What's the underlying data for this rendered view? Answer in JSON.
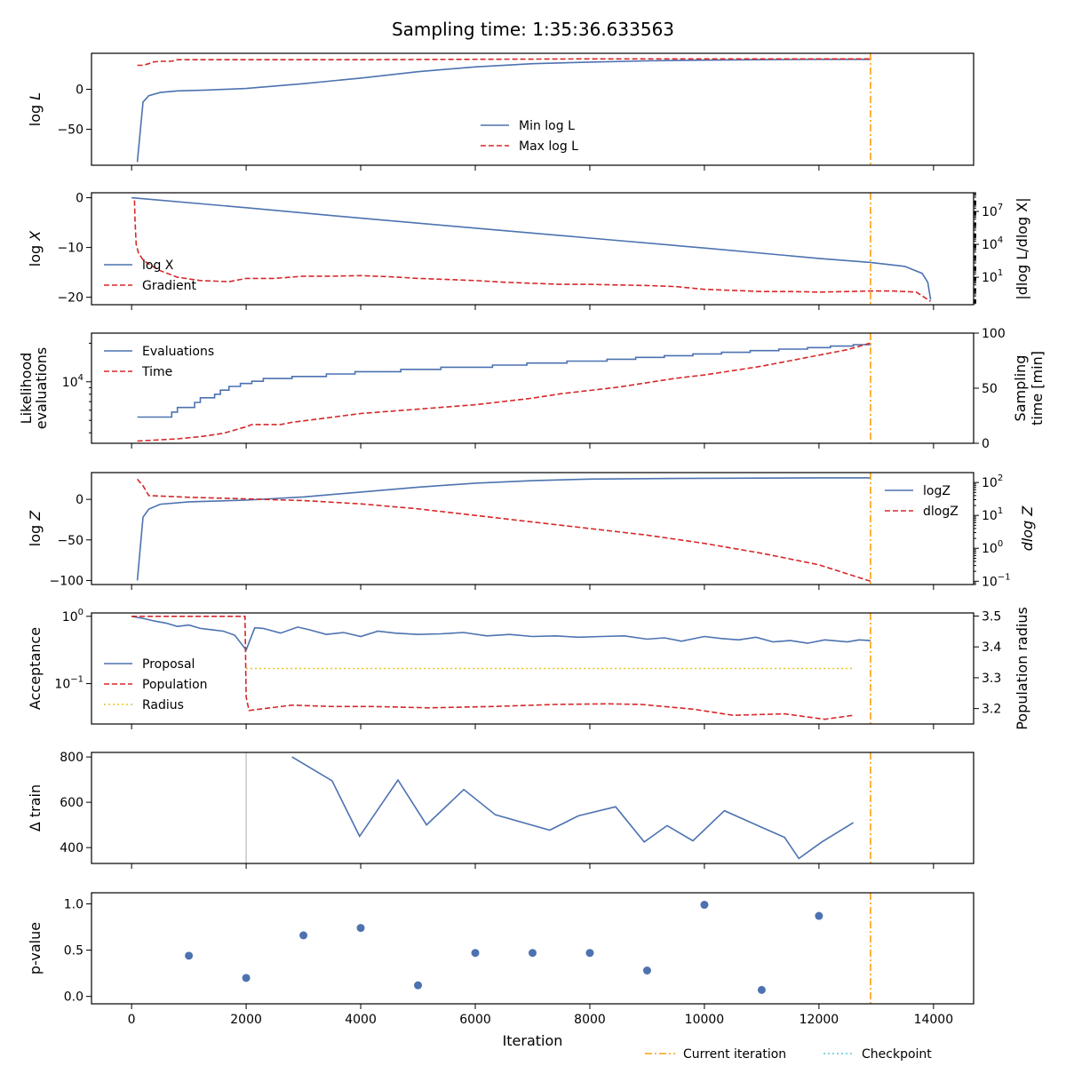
{
  "title": "Sampling time: 1:35:36.633563",
  "colors": {
    "blue": "#4c72b0",
    "red": "#d62728",
    "orange": "#ff9f0e",
    "gold": "#e8c51b",
    "teal": "#5fc9d6",
    "gray": "#c8c8c8"
  },
  "chart_data": [
    {
      "type": "line",
      "id": "logL",
      "ylabel_main": "log ",
      "ylabel_sub": "L",
      "xlim": [
        -700,
        14700
      ],
      "ylim": [
        -95,
        45
      ],
      "yticks": [
        {
          "v": 0,
          "label": "0"
        },
        {
          "v": -50,
          "label": "−50"
        }
      ],
      "legend": "lower-center",
      "series": [
        {
          "name": "Min log L",
          "style": "solid",
          "color": "blue",
          "x": [
            100,
            200,
            300,
            500,
            800,
            1300,
            2000,
            3000,
            4000,
            5000,
            6000,
            7000,
            8000,
            9000,
            10000,
            11000,
            12000,
            12900
          ],
          "y": [
            -91,
            -16,
            -8,
            -4,
            -2,
            -1,
            1,
            7,
            14,
            22,
            28,
            32,
            34,
            35.5,
            36.5,
            37,
            37.5,
            37.5
          ]
        },
        {
          "name": "Max log L",
          "style": "dashed",
          "color": "red",
          "x": [
            100,
            200,
            300,
            350,
            500,
            700,
            800,
            2000,
            4000,
            8000,
            12900
          ],
          "y": [
            30,
            30,
            32,
            34,
            35,
            35,
            37,
            37,
            37,
            38,
            38
          ]
        }
      ],
      "legend_labels": [
        "Min log L",
        "Max log L"
      ]
    },
    {
      "type": "line",
      "id": "logX",
      "ylabel_main": "log ",
      "ylabel_sub": "X",
      "ylabel_right": "|dlog L/dlog X|",
      "xlim": [
        -700,
        14700
      ],
      "ylim": [
        -21.5,
        1.0
      ],
      "yticks": [
        {
          "v": 0,
          "label": "0"
        },
        {
          "v": -10,
          "label": "−10"
        },
        {
          "v": -20,
          "label": "−20"
        }
      ],
      "yright_log_lim": [
        -1.5,
        8.7
      ],
      "yright_ticks": [
        {
          "exp": 7,
          "label": "10",
          "sup": "7"
        },
        {
          "exp": 4,
          "label": "10",
          "sup": "4"
        },
        {
          "exp": 1,
          "label": "10",
          "sup": "1"
        }
      ],
      "legend": "center-left",
      "series": [
        {
          "name": "log X",
          "style": "solid",
          "color": "blue",
          "x": [
            0,
            2000,
            4000,
            6000,
            8000,
            10000,
            12000,
            12900,
            13500,
            13800,
            13900,
            13950
          ],
          "y": [
            0,
            -2.0,
            -4.1,
            -6.1,
            -8.1,
            -10.1,
            -12.2,
            -13.0,
            -13.8,
            -15.2,
            -17.0,
            -20.5
          ]
        },
        {
          "name": "Gradient",
          "style": "dashed",
          "color": "red",
          "axis": "log-right",
          "x": [
            50,
            60,
            80,
            120,
            200,
            300,
            500,
            800,
            1200,
            1700,
            2000,
            2500,
            3000,
            3500,
            4000,
            4500,
            5000,
            5500,
            6000,
            6500,
            7000,
            7500,
            8000,
            8500,
            9000,
            9500,
            10000,
            10500,
            11000,
            11500,
            12000,
            12500,
            12900,
            13300,
            13700,
            13950
          ],
          "y": [
            8.0,
            6.2,
            4.0,
            3.2,
            2.6,
            2.2,
            1.6,
            1.0,
            0.7,
            0.6,
            0.9,
            0.9,
            1.1,
            1.1,
            1.15,
            1.05,
            0.9,
            0.8,
            0.7,
            0.55,
            0.45,
            0.35,
            0.35,
            0.3,
            0.25,
            0.15,
            -0.1,
            -0.2,
            -0.3,
            -0.3,
            -0.35,
            -0.3,
            -0.25,
            -0.25,
            -0.35,
            -1.2
          ]
        }
      ],
      "legend_labels": [
        "log X",
        "Gradient"
      ]
    },
    {
      "type": "line",
      "id": "evals",
      "ylabel_lines": [
        "Likelihood",
        "evaluations"
      ],
      "ylabel_right_lines": [
        "Sampling",
        "time [min]"
      ],
      "xlim": [
        -700,
        14700
      ],
      "ylim_log10": [
        3.52,
        4.38
      ],
      "yticks": [
        {
          "exp": 4,
          "label": "10",
          "sup": "4"
        }
      ],
      "yright_lim": [
        0,
        100
      ],
      "yright_ticks": [
        {
          "v": 100,
          "label": "100"
        },
        {
          "v": 50,
          "label": "50"
        },
        {
          "v": 0,
          "label": "0"
        }
      ],
      "legend": "upper-left",
      "series": [
        {
          "name": "Evaluations",
          "style": "steps",
          "color": "blue",
          "x": [
            100,
            700,
            800,
            1100,
            1200,
            1450,
            1550,
            1700,
            1900,
            2100,
            2300,
            2800,
            3400,
            3900,
            4700,
            5400,
            6300,
            6900,
            7600,
            8300,
            8800,
            9300,
            9800,
            10300,
            10800,
            11300,
            11800,
            12200,
            12600,
            12900
          ],
          "y": [
            5300,
            5800,
            6300,
            6900,
            7500,
            8000,
            8600,
            9200,
            9700,
            10100,
            10600,
            11000,
            11500,
            12000,
            12500,
            13000,
            13500,
            14000,
            14500,
            15000,
            15500,
            16000,
            16500,
            17000,
            17500,
            18000,
            18500,
            19000,
            19500,
            19800
          ]
        },
        {
          "name": "Time",
          "style": "dashed",
          "color": "red",
          "axis": "linear-right",
          "x": [
            100,
            800,
            1200,
            1600,
            1800,
            2000,
            2100,
            2600,
            2800,
            3100,
            3400,
            3700,
            4000,
            4500,
            5000,
            5500,
            6000,
            6500,
            7000,
            7500,
            8000,
            8500,
            9000,
            9500,
            10000,
            10500,
            11000,
            11500,
            12000,
            12500,
            12900
          ],
          "y": [
            2,
            4,
            6,
            9,
            12,
            15,
            17,
            17,
            19,
            21,
            23,
            25,
            27,
            29,
            31,
            33,
            35,
            38,
            41,
            45,
            48,
            51,
            55,
            59,
            62,
            66,
            70,
            75,
            80,
            85,
            91
          ]
        }
      ],
      "legend_labels": [
        "Evaluations",
        "Time"
      ]
    },
    {
      "type": "line",
      "id": "logZ",
      "ylabel_main": "log ",
      "ylabel_sub": "Z",
      "ylabel_right_main": "d",
      "ylabel_right_sub": "log Z",
      "xlim": [
        -700,
        14700
      ],
      "ylim": [
        -105,
        33
      ],
      "yticks": [
        {
          "v": 0,
          "label": "0"
        },
        {
          "v": -50,
          "label": "−50"
        },
        {
          "v": -100,
          "label": "−100"
        }
      ],
      "yright_log_lim": [
        -1.1,
        2.3
      ],
      "yright_ticks": [
        {
          "exp": 2,
          "label": "10",
          "sup": "2"
        },
        {
          "exp": 1,
          "label": "10",
          "sup": "1"
        },
        {
          "exp": 0,
          "label": "10",
          "sup": "0"
        },
        {
          "exp": -1,
          "label": "10",
          "sup": "−1"
        }
      ],
      "legend": "upper-right",
      "series": [
        {
          "name": "logZ",
          "style": "solid",
          "color": "blue",
          "x": [
            100,
            200,
            300,
            500,
            1000,
            2000,
            3000,
            4000,
            5000,
            6000,
            7000,
            8000,
            9000,
            10000,
            11000,
            12000,
            12900
          ],
          "y": [
            -100,
            -22,
            -12,
            -6,
            -3,
            -1,
            3,
            9,
            15,
            20,
            23,
            25,
            25.5,
            26,
            26.2,
            26.5,
            26.5
          ]
        },
        {
          "name": "dlogZ",
          "style": "dashed",
          "color": "red",
          "axis": "log-right",
          "x": [
            100,
            200,
            300,
            1000,
            2000,
            3000,
            4000,
            5000,
            6000,
            7000,
            8000,
            9000,
            10000,
            11000,
            12000,
            12900
          ],
          "y": [
            2.1,
            1.9,
            1.6,
            1.55,
            1.5,
            1.45,
            1.35,
            1.2,
            1.0,
            0.8,
            0.6,
            0.4,
            0.15,
            -0.15,
            -0.5,
            -1.0
          ]
        }
      ],
      "legend_labels": [
        "logZ",
        "dlogZ"
      ]
    },
    {
      "type": "line",
      "id": "acceptance",
      "ylabel_main": "Acceptance",
      "ylabel_right": "Population radius",
      "xlim": [
        -700,
        14700
      ],
      "ylim_log10": [
        -1.6,
        0.05
      ],
      "yticks": [
        {
          "exp": 0,
          "label": "10",
          "sup": "0"
        },
        {
          "exp": -1,
          "label": "10",
          "sup": "−1"
        }
      ],
      "yright_lim": [
        3.15,
        3.51
      ],
      "yright_ticks": [
        {
          "v": 3.5,
          "label": "3.5"
        },
        {
          "v": 3.4,
          "label": "3.4"
        },
        {
          "v": 3.3,
          "label": "3.3"
        },
        {
          "v": 3.2,
          "label": "3.2"
        }
      ],
      "legend": "lower-left",
      "series": [
        {
          "name": "Proposal",
          "style": "solid",
          "color": "blue",
          "axis": "log-left",
          "x": [
            0,
            200,
            400,
            600,
            800,
            1000,
            1200,
            1400,
            1600,
            1800,
            2000,
            2150,
            2300,
            2600,
            2900,
            3100,
            3400,
            3700,
            4000,
            4300,
            4600,
            5000,
            5400,
            5800,
            6200,
            6600,
            7000,
            7400,
            7800,
            8200,
            8600,
            9000,
            9300,
            9600,
            10000,
            10300,
            10600,
            10900,
            11200,
            11500,
            11800,
            12100,
            12500,
            12700,
            12900
          ],
          "y": [
            0.0,
            -0.03,
            -0.07,
            -0.1,
            -0.15,
            -0.13,
            -0.18,
            -0.2,
            -0.22,
            -0.28,
            -0.5,
            -0.17,
            -0.18,
            -0.25,
            -0.16,
            -0.2,
            -0.27,
            -0.24,
            -0.3,
            -0.22,
            -0.25,
            -0.27,
            -0.26,
            -0.24,
            -0.29,
            -0.27,
            -0.3,
            -0.29,
            -0.31,
            -0.3,
            -0.29,
            -0.34,
            -0.32,
            -0.37,
            -0.3,
            -0.33,
            -0.35,
            -0.31,
            -0.38,
            -0.36,
            -0.4,
            -0.35,
            -0.38,
            -0.35,
            -0.36
          ]
        },
        {
          "name": "Population",
          "style": "dashed",
          "color": "red",
          "axis": "log-left",
          "x": [
            0,
            1980,
            2000,
            2050,
            2800,
            3500,
            4200,
            5200,
            6300,
            7400,
            8300,
            8900,
            9800,
            10500,
            11400,
            12100,
            12600
          ],
          "y": [
            0.0,
            0.0,
            -1.2,
            -1.4,
            -1.32,
            -1.34,
            -1.34,
            -1.36,
            -1.34,
            -1.31,
            -1.3,
            -1.31,
            -1.38,
            -1.47,
            -1.45,
            -1.53,
            -1.47
          ]
        },
        {
          "name": "Radius",
          "style": "dotted",
          "color": "gold",
          "axis": "linear-right",
          "x": [
            2000,
            12600
          ],
          "y": [
            3.33,
            3.33
          ]
        }
      ],
      "legend_labels": [
        "Proposal",
        "Population",
        "Radius"
      ]
    },
    {
      "type": "line",
      "id": "dtrain",
      "ylabel_main": "Δ train",
      "xlim": [
        -700,
        14700
      ],
      "ylim": [
        330,
        820
      ],
      "yticks": [
        {
          "v": 800,
          "label": "800"
        },
        {
          "v": 600,
          "label": "600"
        },
        {
          "v": 400,
          "label": "400"
        }
      ],
      "vline_gray_x": 2000,
      "series": [
        {
          "name": "Δ train",
          "style": "solid",
          "color": "blue",
          "x": [
            2800,
            3500,
            3980,
            4650,
            5150,
            5800,
            6350,
            7300,
            7800,
            8450,
            8950,
            9350,
            9800,
            10350,
            10950,
            11400,
            11650,
            12050,
            12600
          ],
          "y": [
            800,
            695,
            450,
            698,
            500,
            656,
            545,
            477,
            540,
            580,
            425,
            497,
            430,
            563,
            495,
            445,
            352,
            425,
            510
          ]
        }
      ]
    },
    {
      "type": "scatter",
      "id": "pvalue",
      "ylabel_main": "p-value",
      "xlim": [
        -700,
        14700
      ],
      "ylim": [
        -0.08,
        1.12
      ],
      "yticks": [
        {
          "v": 1.0,
          "label": "1.0"
        },
        {
          "v": 0.5,
          "label": "0.5"
        },
        {
          "v": 0.0,
          "label": "0.0"
        }
      ],
      "xticks": [
        0,
        2000,
        4000,
        6000,
        8000,
        10000,
        12000,
        14000
      ],
      "xlabel": "Iteration",
      "series": [
        {
          "name": "p-value",
          "color": "blue",
          "x": [
            1000,
            2000,
            3000,
            4000,
            5000,
            6000,
            7000,
            8000,
            9000,
            10000,
            11000,
            12000
          ],
          "y": [
            0.44,
            0.2,
            0.66,
            0.74,
            0.12,
            0.47,
            0.47,
            0.47,
            0.28,
            0.99,
            0.07,
            0.87
          ]
        }
      ]
    }
  ],
  "current_iteration": 12900,
  "footer_legend": [
    "Current iteration",
    "Checkpoint"
  ]
}
